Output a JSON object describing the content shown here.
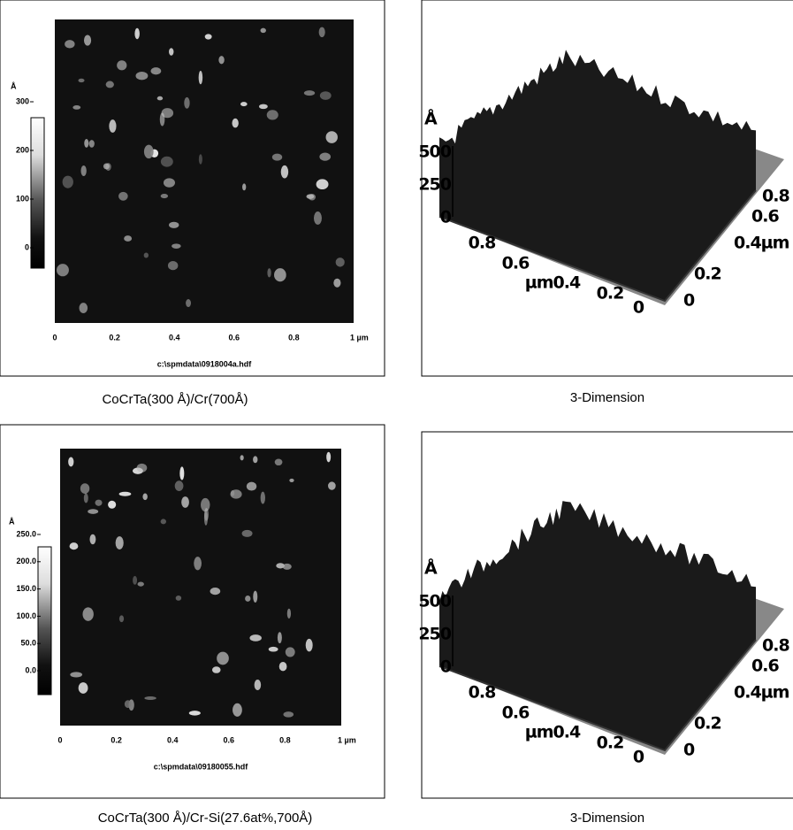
{
  "panels": [
    {
      "unit": "Å",
      "scale_labels": [
        "300",
        "200",
        "100",
        "0"
      ],
      "x_labels": [
        "0",
        "0.2",
        "0.4",
        "0.6",
        "0.8",
        "1 µm"
      ],
      "file": "c:\\spmdata\\0918004a.hdf",
      "caption": "CoCrTa(300 Å)/Cr(700Å)"
    },
    {
      "z_unit": "Å",
      "z_labels": [
        "500",
        "250",
        "0"
      ],
      "x_labels": [
        "0.8",
        "0.6",
        "µm0.4",
        "0.2",
        "0"
      ],
      "y_labels": [
        "0",
        "0.2",
        "0.4µm",
        "0.6",
        "0.8"
      ],
      "caption": "3-Dimension"
    },
    {
      "unit": "Å",
      "scale_labels": [
        "250.0",
        "200.0",
        "150.0",
        "100.0",
        "50.0",
        "0.0"
      ],
      "x_labels": [
        "0",
        "0.2",
        "0.4",
        "0.6",
        "0.8",
        "1 µm"
      ],
      "file": "c:\\spmdata\\09180055.hdf",
      "caption": "CoCrTa(300 Å)/Cr-Si(27.6at%,700Å)"
    },
    {
      "z_unit": "Å",
      "z_labels": [
        "500",
        "250",
        "0"
      ],
      "x_labels": [
        "0.8",
        "0.6",
        "µm0.4",
        "0.2",
        "0"
      ],
      "y_labels": [
        "0",
        "0.2",
        "0.4µm",
        "0.6",
        "0.8"
      ],
      "caption": "3-Dimension"
    }
  ]
}
